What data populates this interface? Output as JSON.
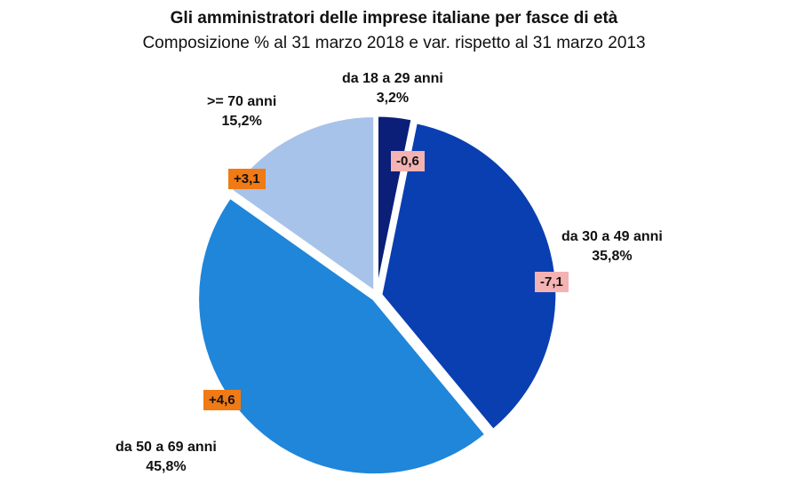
{
  "chart_data": {
    "type": "pie",
    "title": "Gli amministratori delle imprese italiane per fasce di età",
    "subtitle": "Composizione % al 31 marzo 2018 e var. rispetto al 31 marzo 2013",
    "slices": [
      {
        "label": "da 18 a 29 anni",
        "value": 3.2,
        "value_label": "3,2%",
        "change": -0.6,
        "change_label": "-0,6",
        "color": "#0b1f78"
      },
      {
        "label": "da 30 a 49 anni",
        "value": 35.8,
        "value_label": "35,8%",
        "change": -7.1,
        "change_label": "-7,1",
        "color": "#0a3fb2"
      },
      {
        "label": "da 50 a 69 anni",
        "value": 45.8,
        "value_label": "45,8%",
        "change": 4.6,
        "change_label": "+4,6",
        "color": "#1f86da"
      },
      {
        "label": ">= 70 anni",
        "value": 15.2,
        "value_label": "15,2%",
        "change": 3.1,
        "change_label": "+3,1",
        "color": "#a8c3ea"
      }
    ],
    "positive_color": "#f07a14",
    "negative_color": "#f4b3b3"
  }
}
